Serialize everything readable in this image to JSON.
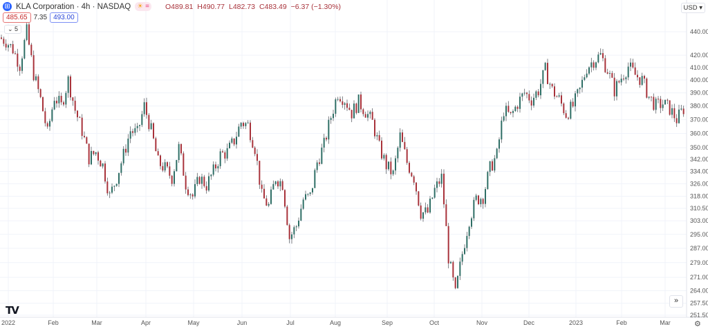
{
  "header": {
    "title": "KLA Corporation · 4h · NASDAQ",
    "open": "O489.81",
    "high": "H490.77",
    "low": "L482.73",
    "close": "C483.49",
    "change": "−6.37 (−1.30%)",
    "sell_price": "485.65",
    "spread": "7.35",
    "buy_price": "493.00",
    "collapse_label": "5",
    "currency": "USD ▾"
  },
  "icons": {
    "logo": "kla-logo-icon",
    "market_status": "sun-icon",
    "events": "equals-icon",
    "scroll": "double-chevron-right-icon",
    "settings": "gear-icon",
    "brand": "tradingview-logo"
  },
  "chart_data": {
    "type": "candlestick",
    "scale": "log",
    "ylim": [
      251.5,
      440
    ],
    "grid": true,
    "colors": {
      "up": "#2e6e65",
      "down": "#a8323a",
      "wick": "#5d6066",
      "grid": "#f0f3fa"
    },
    "y_ticks": [
      "440.00",
      "420.00",
      "410.00",
      "400.00",
      "390.00",
      "380.00",
      "370.00",
      "360.00",
      "350.00",
      "342.00",
      "334.00",
      "326.00",
      "318.00",
      "310.50",
      "303.00",
      "295.00",
      "287.00",
      "279.00",
      "271.00",
      "264.00",
      "257.50",
      "251.50"
    ],
    "x_ticks": [
      "2022",
      "Feb",
      "Mar",
      "Apr",
      "May",
      "Jun",
      "Jul",
      "Aug",
      "Sep",
      "Oct",
      "Nov",
      "Dec",
      "2023",
      "Feb",
      "Mar"
    ],
    "date_range": [
      "2022-01-03",
      "2023-03-10"
    ],
    "sampled_closes": [
      435,
      432,
      425,
      412,
      440,
      405,
      385,
      360,
      387,
      380,
      400,
      377,
      362,
      343,
      347,
      338,
      318,
      330,
      345,
      362,
      360,
      380,
      362,
      340,
      336,
      330,
      350,
      326,
      318,
      330,
      325,
      334,
      345,
      347,
      355,
      368,
      366,
      350,
      318,
      312,
      330,
      326,
      293,
      300,
      316,
      318,
      340,
      352,
      372,
      390,
      385,
      375,
      383,
      376,
      368,
      350,
      338,
      332,
      358,
      340,
      330,
      308,
      308,
      322,
      330,
      282,
      262,
      284,
      304,
      316,
      318,
      336,
      345,
      377,
      372,
      382,
      390,
      385,
      392,
      408,
      392,
      385,
      374,
      380,
      392,
      410,
      416,
      420,
      408,
      392,
      402,
      411,
      404,
      400,
      387,
      380,
      382,
      378,
      370,
      378
    ]
  }
}
